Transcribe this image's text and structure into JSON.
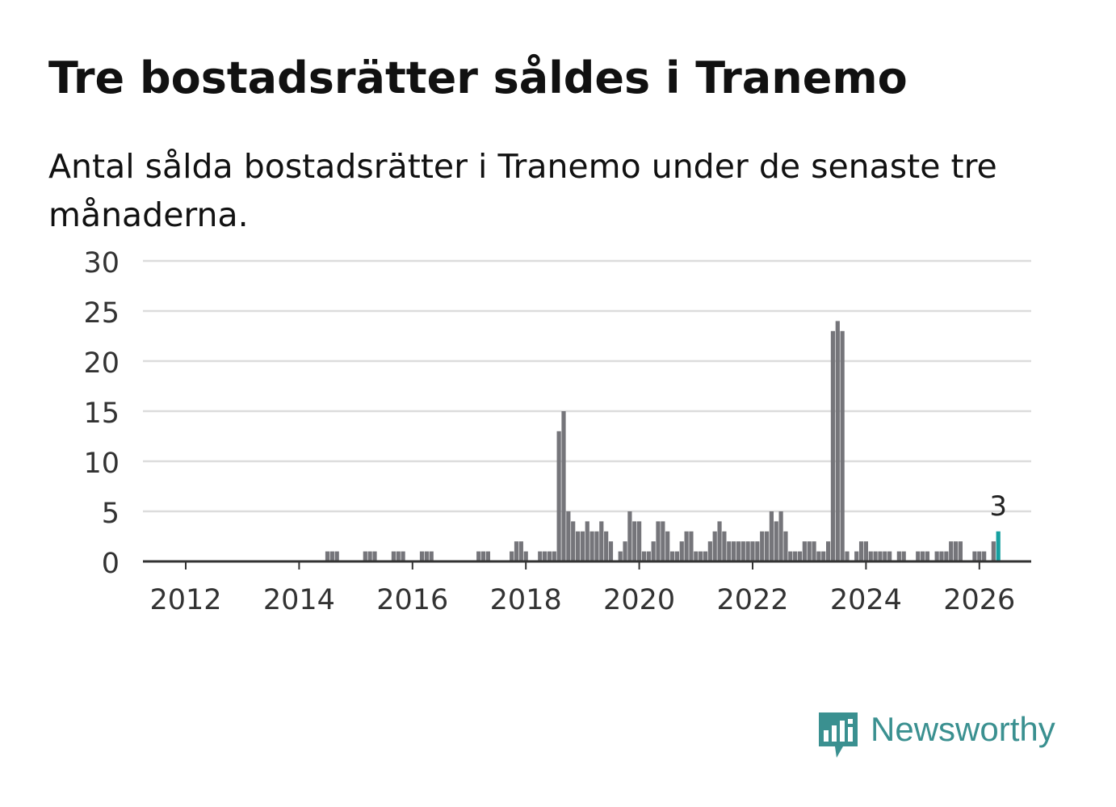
{
  "title": "Tre bostadsrätter såldes i Tranemo",
  "subtitle": "Antal sålda bostadsrätter i Tranemo under de senaste tre månaderna.",
  "brand": {
    "name": "Newsworthy",
    "icon": "newsworthy-logo-icon"
  },
  "colors": {
    "bar": "#75757a",
    "highlight": "#16a0a0",
    "grid": "#dcdcdc",
    "axis": "#333333",
    "brand": "#3a9090"
  },
  "chart_data": {
    "type": "bar",
    "title": "Tre bostadsrätter såldes i Tranemo",
    "xlabel": "",
    "ylabel": "",
    "ylim": [
      0,
      30
    ],
    "yticks": [
      0,
      5,
      10,
      15,
      20,
      25,
      30
    ],
    "xticks": [
      {
        "label": "2012",
        "year": 2012
      },
      {
        "label": "2014",
        "year": 2014
      },
      {
        "label": "2016",
        "year": 2016
      },
      {
        "label": "2018",
        "year": 2018
      },
      {
        "label": "2020",
        "year": 2020
      },
      {
        "label": "2022",
        "year": 2022
      },
      {
        "label": "2024",
        "year": 2024
      },
      {
        "label": "2026",
        "year": 2026
      }
    ],
    "start": "2011-04",
    "values": [
      0,
      0,
      0,
      0,
      0,
      0,
      0,
      0,
      0,
      0,
      0,
      0,
      0,
      0,
      0,
      0,
      0,
      0,
      0,
      0,
      0,
      0,
      0,
      0,
      0,
      0,
      0,
      0,
      0,
      0,
      0,
      0,
      0,
      0,
      0,
      0,
      0,
      0,
      0,
      1,
      1,
      1,
      0,
      0,
      0,
      0,
      0,
      1,
      1,
      1,
      0,
      0,
      0,
      1,
      1,
      1,
      0,
      0,
      0,
      1,
      1,
      1,
      0,
      0,
      0,
      0,
      0,
      0,
      0,
      0,
      0,
      1,
      1,
      1,
      0,
      0,
      0,
      0,
      1,
      2,
      2,
      1,
      0,
      0,
      1,
      1,
      1,
      1,
      13,
      15,
      5,
      4,
      3,
      3,
      4,
      3,
      3,
      4,
      3,
      2,
      0,
      1,
      2,
      5,
      4,
      4,
      1,
      1,
      2,
      4,
      4,
      3,
      1,
      1,
      2,
      3,
      3,
      1,
      1,
      1,
      2,
      3,
      4,
      3,
      2,
      2,
      2,
      2,
      2,
      2,
      2,
      3,
      3,
      5,
      4,
      5,
      3,
      1,
      1,
      1,
      2,
      2,
      2,
      1,
      1,
      2,
      23,
      24,
      23,
      1,
      0,
      1,
      2,
      2,
      1,
      1,
      1,
      1,
      1,
      0,
      1,
      1,
      0,
      0,
      1,
      1,
      1,
      0,
      1,
      1,
      1,
      2,
      2,
      2,
      0,
      0,
      1,
      1,
      1,
      0,
      2,
      3
    ],
    "highlight_label": "3",
    "legend": "none"
  }
}
